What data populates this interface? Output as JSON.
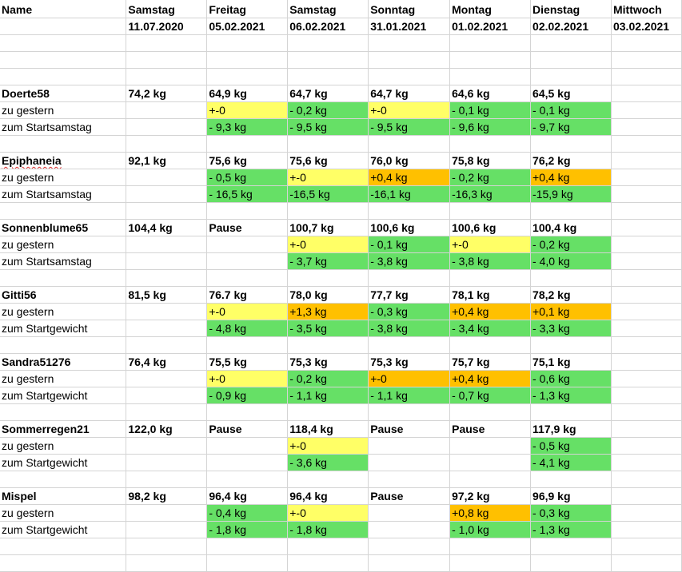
{
  "colors": {
    "zero_change": "#ffff66",
    "gain": "#ffc000",
    "loss": "#66e066",
    "gridline": "#d4d4d4"
  },
  "header": {
    "name_label": "Name",
    "days": [
      {
        "weekday": "Samstag",
        "date": "11.07.2020"
      },
      {
        "weekday": "Freitag",
        "date": "05.02.2021"
      },
      {
        "weekday": "Samstag",
        "date": "06.02.2021"
      },
      {
        "weekday": "Sonntag",
        "date": "31.01.2021"
      },
      {
        "weekday": "Montag",
        "date": "01.02.2021"
      },
      {
        "weekday": "Dienstag",
        "date": "02.02.2021"
      },
      {
        "weekday": "Mittwoch",
        "date": "03.02.2021"
      }
    ]
  },
  "rows": [
    {
      "kind": "blank"
    },
    {
      "kind": "blank"
    },
    {
      "kind": "blank"
    },
    {
      "kind": "name",
      "cells": [
        "Doerte58",
        "74,2 kg",
        "64,9 kg",
        "64,7 kg",
        "64,7 kg",
        "64,6 kg",
        "64,5 kg",
        ""
      ]
    },
    {
      "kind": "data",
      "cells": [
        "zu gestern",
        "",
        "+-0",
        "- 0,2 kg",
        "+-0",
        "- 0,1 kg",
        "- 0,1 kg",
        ""
      ],
      "fills": [
        "",
        "",
        "y",
        "g",
        "y",
        "g",
        "g",
        ""
      ]
    },
    {
      "kind": "data",
      "cells": [
        "zum Startsamstag",
        "",
        "- 9,3 kg",
        "- 9,5 kg",
        "- 9,5 kg",
        "- 9,6 kg",
        "- 9,7 kg",
        ""
      ],
      "fills": [
        "",
        "",
        "g",
        "g",
        "g",
        "g",
        "g",
        ""
      ]
    },
    {
      "kind": "blank"
    },
    {
      "kind": "name",
      "cells": [
        "Epiphaneia",
        "92,1 kg",
        "75,6 kg",
        "75,6 kg",
        "76,0 kg",
        "75,8 kg",
        "76,2 kg",
        ""
      ],
      "spellcheck": true
    },
    {
      "kind": "data",
      "cells": [
        "zu gestern",
        "",
        "- 0,5 kg",
        "+-0",
        "+0,4 kg",
        "- 0,2 kg",
        "+0,4 kg",
        ""
      ],
      "fills": [
        "",
        "",
        "g",
        "y",
        "o",
        "g",
        "o",
        ""
      ]
    },
    {
      "kind": "data",
      "cells": [
        "zum Startsamstag",
        "",
        "- 16,5 kg",
        "-16,5 kg",
        "-16,1 kg",
        "-16,3 kg",
        "-15,9 kg",
        ""
      ],
      "fills": [
        "",
        "",
        "g",
        "g",
        "g",
        "g",
        "g",
        ""
      ]
    },
    {
      "kind": "blank"
    },
    {
      "kind": "name",
      "cells": [
        "Sonnenblume65",
        "104,4 kg",
        "Pause",
        "100,7 kg",
        "100,6 kg",
        "100,6 kg",
        "100,4 kg",
        ""
      ]
    },
    {
      "kind": "data",
      "cells": [
        "zu gestern",
        "",
        "",
        "+-0",
        "- 0,1 kg",
        "+-0",
        "- 0,2 kg",
        ""
      ],
      "fills": [
        "",
        "",
        "",
        "y",
        "g",
        "y",
        "g",
        ""
      ]
    },
    {
      "kind": "data",
      "cells": [
        "zum Startsamstag",
        "",
        "",
        "- 3,7 kg",
        "- 3,8 kg",
        "- 3,8 kg",
        "- 4,0 kg",
        ""
      ],
      "fills": [
        "",
        "",
        "",
        "g",
        "g",
        "g",
        "g",
        ""
      ]
    },
    {
      "kind": "blank"
    },
    {
      "kind": "name",
      "cells": [
        "Gitti56",
        "81,5 kg",
        "76.7 kg",
        "78,0 kg",
        "77,7 kg",
        "78,1 kg",
        "78,2 kg",
        ""
      ]
    },
    {
      "kind": "data",
      "cells": [
        "zu gestern",
        "",
        "+-0",
        "+1,3 kg",
        "- 0,3 kg",
        "+0,4 kg",
        "+0,1 kg",
        ""
      ],
      "fills": [
        "",
        "",
        "y",
        "o",
        "g",
        "o",
        "o",
        ""
      ]
    },
    {
      "kind": "data",
      "cells": [
        "zum Startgewicht",
        "",
        "- 4,8 kg",
        "- 3,5 kg",
        "- 3,8 kg",
        "- 3,4 kg",
        "- 3,3 kg",
        ""
      ],
      "fills": [
        "",
        "",
        "g",
        "g",
        "g",
        "g",
        "g",
        ""
      ]
    },
    {
      "kind": "blank"
    },
    {
      "kind": "name",
      "cells": [
        "Sandra51276",
        "76,4 kg",
        "75,5 kg",
        "75,3 kg",
        "75,3 kg",
        "75,7 kg",
        "75,1 kg",
        ""
      ]
    },
    {
      "kind": "data",
      "cells": [
        "zu gestern",
        "",
        "+-0",
        "- 0,2 kg",
        "+-0",
        "+0,4 kg",
        "- 0,6 kg",
        ""
      ],
      "fills": [
        "",
        "",
        "y",
        "g",
        "o",
        "o",
        "g",
        ""
      ]
    },
    {
      "kind": "data",
      "cells": [
        "zum Startgewicht",
        "",
        "- 0,9 kg",
        "- 1,1 kg",
        "- 1,1 kg",
        "- 0,7 kg",
        "- 1,3 kg",
        ""
      ],
      "fills": [
        "",
        "",
        "g",
        "g",
        "g",
        "g",
        "g",
        ""
      ]
    },
    {
      "kind": "blank"
    },
    {
      "kind": "name",
      "cells": [
        "Sommerregen21",
        "122,0 kg",
        "Pause",
        "118,4 kg",
        "Pause",
        "Pause",
        "117,9 kg",
        ""
      ]
    },
    {
      "kind": "data",
      "cells": [
        "zu gestern",
        "",
        "",
        "+-0",
        "",
        "",
        "- 0,5 kg",
        ""
      ],
      "fills": [
        "",
        "",
        "",
        "y",
        "",
        "",
        "g",
        ""
      ]
    },
    {
      "kind": "data",
      "cells": [
        "zum Startgewicht",
        "",
        "",
        "- 3,6 kg",
        "",
        "",
        "- 4,1 kg",
        ""
      ],
      "fills": [
        "",
        "",
        "",
        "g",
        "",
        "",
        "g",
        ""
      ]
    },
    {
      "kind": "blank"
    },
    {
      "kind": "name",
      "cells": [
        "Mispel",
        "98,2 kg",
        "96,4 kg",
        "96,4 kg",
        "Pause",
        "97,2 kg",
        "96,9 kg",
        ""
      ]
    },
    {
      "kind": "data",
      "cells": [
        "zu gestern",
        "",
        "- 0,4 kg",
        "+-0",
        "",
        "+0,8 kg",
        "- 0,3 kg",
        ""
      ],
      "fills": [
        "",
        "",
        "g",
        "y",
        "",
        "o",
        "g",
        ""
      ]
    },
    {
      "kind": "data",
      "cells": [
        "zum Startgewicht",
        "",
        "- 1,8 kg",
        "- 1,8 kg",
        "",
        "- 1,0 kg",
        "- 1,3 kg",
        ""
      ],
      "fills": [
        "",
        "",
        "g",
        "g",
        "",
        "g",
        "g",
        ""
      ]
    },
    {
      "kind": "blank"
    },
    {
      "kind": "blank"
    }
  ]
}
